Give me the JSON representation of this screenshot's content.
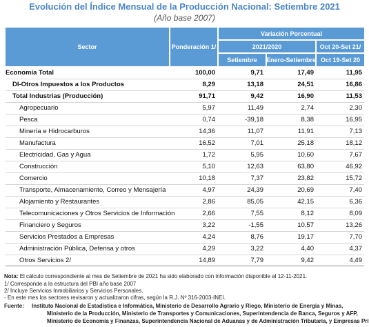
{
  "title": "Evolución del Índice Mensual de la Producción Nacional: Setiembre 2021",
  "subtitle": "(Año base 2007)",
  "table": {
    "header": {
      "sector": "Sector",
      "ponderacion": "Ponderación 1/",
      "variacion": "Variación Porcentual",
      "period_a": "2021/2020",
      "period_b_top": "Oct 20-Set 21/",
      "period_b_bottom": "Oct 19-Set 20",
      "col_setiembre": "Setiembre",
      "col_enero": "Enero-Setiembre"
    },
    "rows": [
      [
        "Economía Total",
        "100,00",
        "9,71",
        "17,49",
        "11,95"
      ],
      [
        "DI-Otros Impuestos a los Productos",
        "8,29",
        "13,18",
        "24,51",
        "16,86"
      ],
      [
        "Total Industrias (Producción)",
        "91,71",
        "9,42",
        "16,90",
        "11,53"
      ],
      [
        "Agropecuario",
        "5,97",
        "11,49",
        "2,74",
        "2,30"
      ],
      [
        "Pesca",
        "0,74",
        "-39,18",
        "8,38",
        "16,95"
      ],
      [
        "Minería e Hidrocarburos",
        "14,36",
        "11,07",
        "11,91",
        "7,13"
      ],
      [
        "Manufactura",
        "16,52",
        "7,01",
        "25,18",
        "18,12"
      ],
      [
        "Electricidad, Gas y Agua",
        "1,72",
        "5,95",
        "10,60",
        "7,67"
      ],
      [
        "Construcción",
        "5,10",
        "12,63",
        "63,80",
        "46,92"
      ],
      [
        "Comercio",
        "10,18",
        "7,37",
        "23,82",
        "15,72"
      ],
      [
        "Transporte, Almacenamiento, Correo y Mensajería",
        "4,97",
        "24,39",
        "20,69",
        "7,40"
      ],
      [
        "Alojamiento y Restaurantes",
        "2,86",
        "85,05",
        "42,15",
        "6,36"
      ],
      [
        "Telecomunicaciones y Otros Servicios de Información",
        "2,66",
        "7,55",
        "8,12",
        "8,09"
      ],
      [
        "Financiero y Seguros",
        "3,22",
        "-1,55",
        "10,57",
        "13,26"
      ],
      [
        "Servicios Prestados a Empresas",
        "4,24",
        "8,76",
        "19,17",
        "7,70"
      ],
      [
        "Administración Pública, Defensa y otros",
        "4,29",
        "3,22",
        "4,40",
        "4,37"
      ],
      [
        "Otros Servicios 2/",
        "14,89",
        "7,79",
        "9,42",
        "4,49"
      ]
    ]
  },
  "note_label": "Nota:",
  "note": "El cálculo correspondiente al mes de Setiembre de 2021 ha sido elaborado con información disponible al 12-11-2021.",
  "notes": [
    "1/ Corresponde a la estructura del PBI año base 2007",
    "2/ Incluye Servicios Inmobiliarios y Servicios Personales.",
    "- En este mes los sectores revisaron y actualizaron cifras, según la R.J. Nº 316-2003-INEI."
  ],
  "source_label": "Fuente:",
  "source": [
    "Instituto Nacional de Estadística e Informática, Ministerio de Desarrollo Agrario y Riego, Ministerio de Energía y Minas,",
    "Ministerio de la Producción, Ministerio de Transportes y Comunicaciones, Superintendencia de Banca, Seguros y AFP,",
    "Ministerio de Economía y Finanzas, Superintendencia Nacional de Aduanas y de Administración Tributaria, y Empresas Privadas."
  ]
}
